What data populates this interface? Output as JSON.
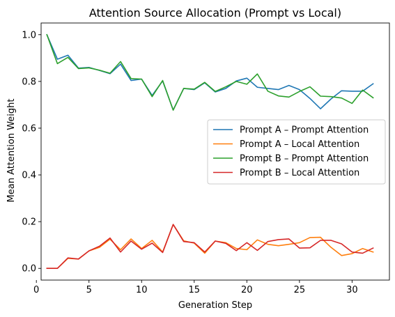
{
  "chart_data": {
    "type": "line",
    "title": "Attention Source Allocation (Prompt vs Local)",
    "xlabel": "Generation Step",
    "ylabel": "Mean Attention Weight",
    "xlim": [
      0.45,
      33.55
    ],
    "ylim": [
      -0.05,
      1.05
    ],
    "x_ticks": [
      0,
      5,
      10,
      15,
      20,
      25,
      30
    ],
    "y_ticks": [
      0.0,
      0.2,
      0.4,
      0.6,
      0.8,
      1.0
    ],
    "y_tick_labels": [
      "0.0",
      "0.2",
      "0.4",
      "0.6",
      "0.8",
      "1.0"
    ],
    "grid": false,
    "legend_position": "center-right",
    "x": [
      1,
      2,
      3,
      4,
      5,
      6,
      7,
      8,
      9,
      10,
      11,
      12,
      13,
      14,
      15,
      16,
      17,
      18,
      19,
      20,
      21,
      22,
      23,
      24,
      25,
      26,
      27,
      28,
      29,
      30,
      31,
      32
    ],
    "series": [
      {
        "name": "Prompt A – Prompt Attention",
        "color": "#1f77b4",
        "values": [
          1.0,
          0.895,
          0.912,
          0.857,
          0.86,
          0.847,
          0.833,
          0.874,
          0.804,
          0.81,
          0.74,
          0.802,
          0.678,
          0.77,
          0.765,
          0.794,
          0.755,
          0.77,
          0.802,
          0.814,
          0.775,
          0.77,
          0.765,
          0.783,
          0.765,
          0.727,
          0.683,
          0.725,
          0.76,
          0.758,
          0.758,
          0.79
        ]
      },
      {
        "name": "Prompt A – Local Attention",
        "color": "#ff7f0e",
        "values": [
          0.0,
          0.0,
          0.043,
          0.04,
          0.075,
          0.09,
          0.125,
          0.08,
          0.126,
          0.085,
          0.12,
          0.07,
          0.188,
          0.118,
          0.108,
          0.065,
          0.117,
          0.11,
          0.085,
          0.08,
          0.122,
          0.103,
          0.097,
          0.103,
          0.11,
          0.132,
          0.133,
          0.09,
          0.055,
          0.063,
          0.085,
          0.07
        ]
      },
      {
        "name": "Prompt B – Prompt Attention",
        "color": "#2ca02c",
        "values": [
          1.0,
          0.876,
          0.903,
          0.855,
          0.858,
          0.848,
          0.835,
          0.885,
          0.812,
          0.81,
          0.735,
          0.804,
          0.677,
          0.77,
          0.767,
          0.796,
          0.757,
          0.777,
          0.8,
          0.788,
          0.832,
          0.758,
          0.738,
          0.733,
          0.757,
          0.777,
          0.737,
          0.735,
          0.729,
          0.706,
          0.763,
          0.73
        ]
      },
      {
        "name": "Prompt B – Local Attention",
        "color": "#d62728",
        "values": [
          0.0,
          0.0,
          0.045,
          0.04,
          0.075,
          0.095,
          0.13,
          0.07,
          0.117,
          0.082,
          0.108,
          0.068,
          0.188,
          0.115,
          0.11,
          0.07,
          0.117,
          0.107,
          0.076,
          0.11,
          0.077,
          0.115,
          0.123,
          0.126,
          0.087,
          0.088,
          0.12,
          0.12,
          0.105,
          0.07,
          0.065,
          0.087
        ]
      }
    ]
  }
}
